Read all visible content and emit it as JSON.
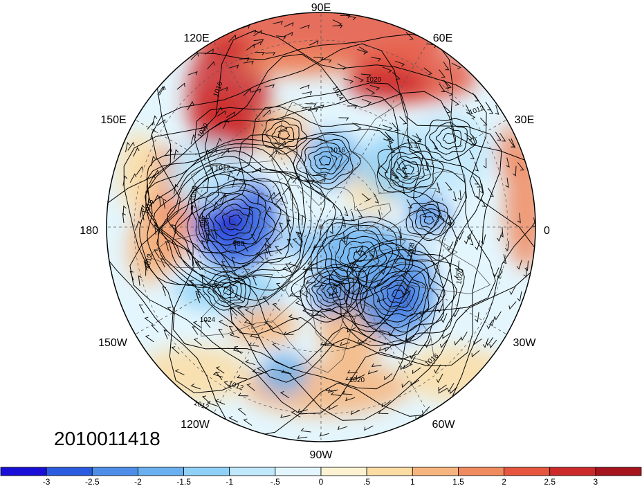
{
  "timestamp": "2010011418",
  "longitude_labels": [
    "90E",
    "60E",
    "30E",
    "0",
    "30W",
    "60W",
    "90W",
    "120W",
    "150W",
    "180",
    "150E",
    "120E"
  ],
  "contour_labels": [
    "1016",
    "1020",
    "1012",
    "1008",
    "1004",
    "996",
    "988",
    "1024",
    "1020",
    "1012",
    "1020",
    "1016",
    "1024",
    "1008",
    "1012",
    "1016",
    "1020",
    "1012",
    "1016",
    "1012"
  ],
  "colorbar": {
    "labels": [
      "-3",
      "-2.5",
      "-2",
      "-1.5",
      "-1",
      "-.5",
      "0",
      ".5",
      "1",
      "1.5",
      "2",
      "2.5",
      "3"
    ],
    "colors": [
      "#1a0fd6",
      "#2b5ce0",
      "#4e8ee8",
      "#6ab0f0",
      "#8fd0f7",
      "#c0e8fb",
      "#e4f6fd",
      "#fdf3d2",
      "#fbdca3",
      "#f6b57e",
      "#f08a5f",
      "#e6553e",
      "#cc2a2a",
      "#a5141d"
    ]
  },
  "fill_colors": {
    "background": "#ffffff",
    "contour": "#000000"
  }
}
